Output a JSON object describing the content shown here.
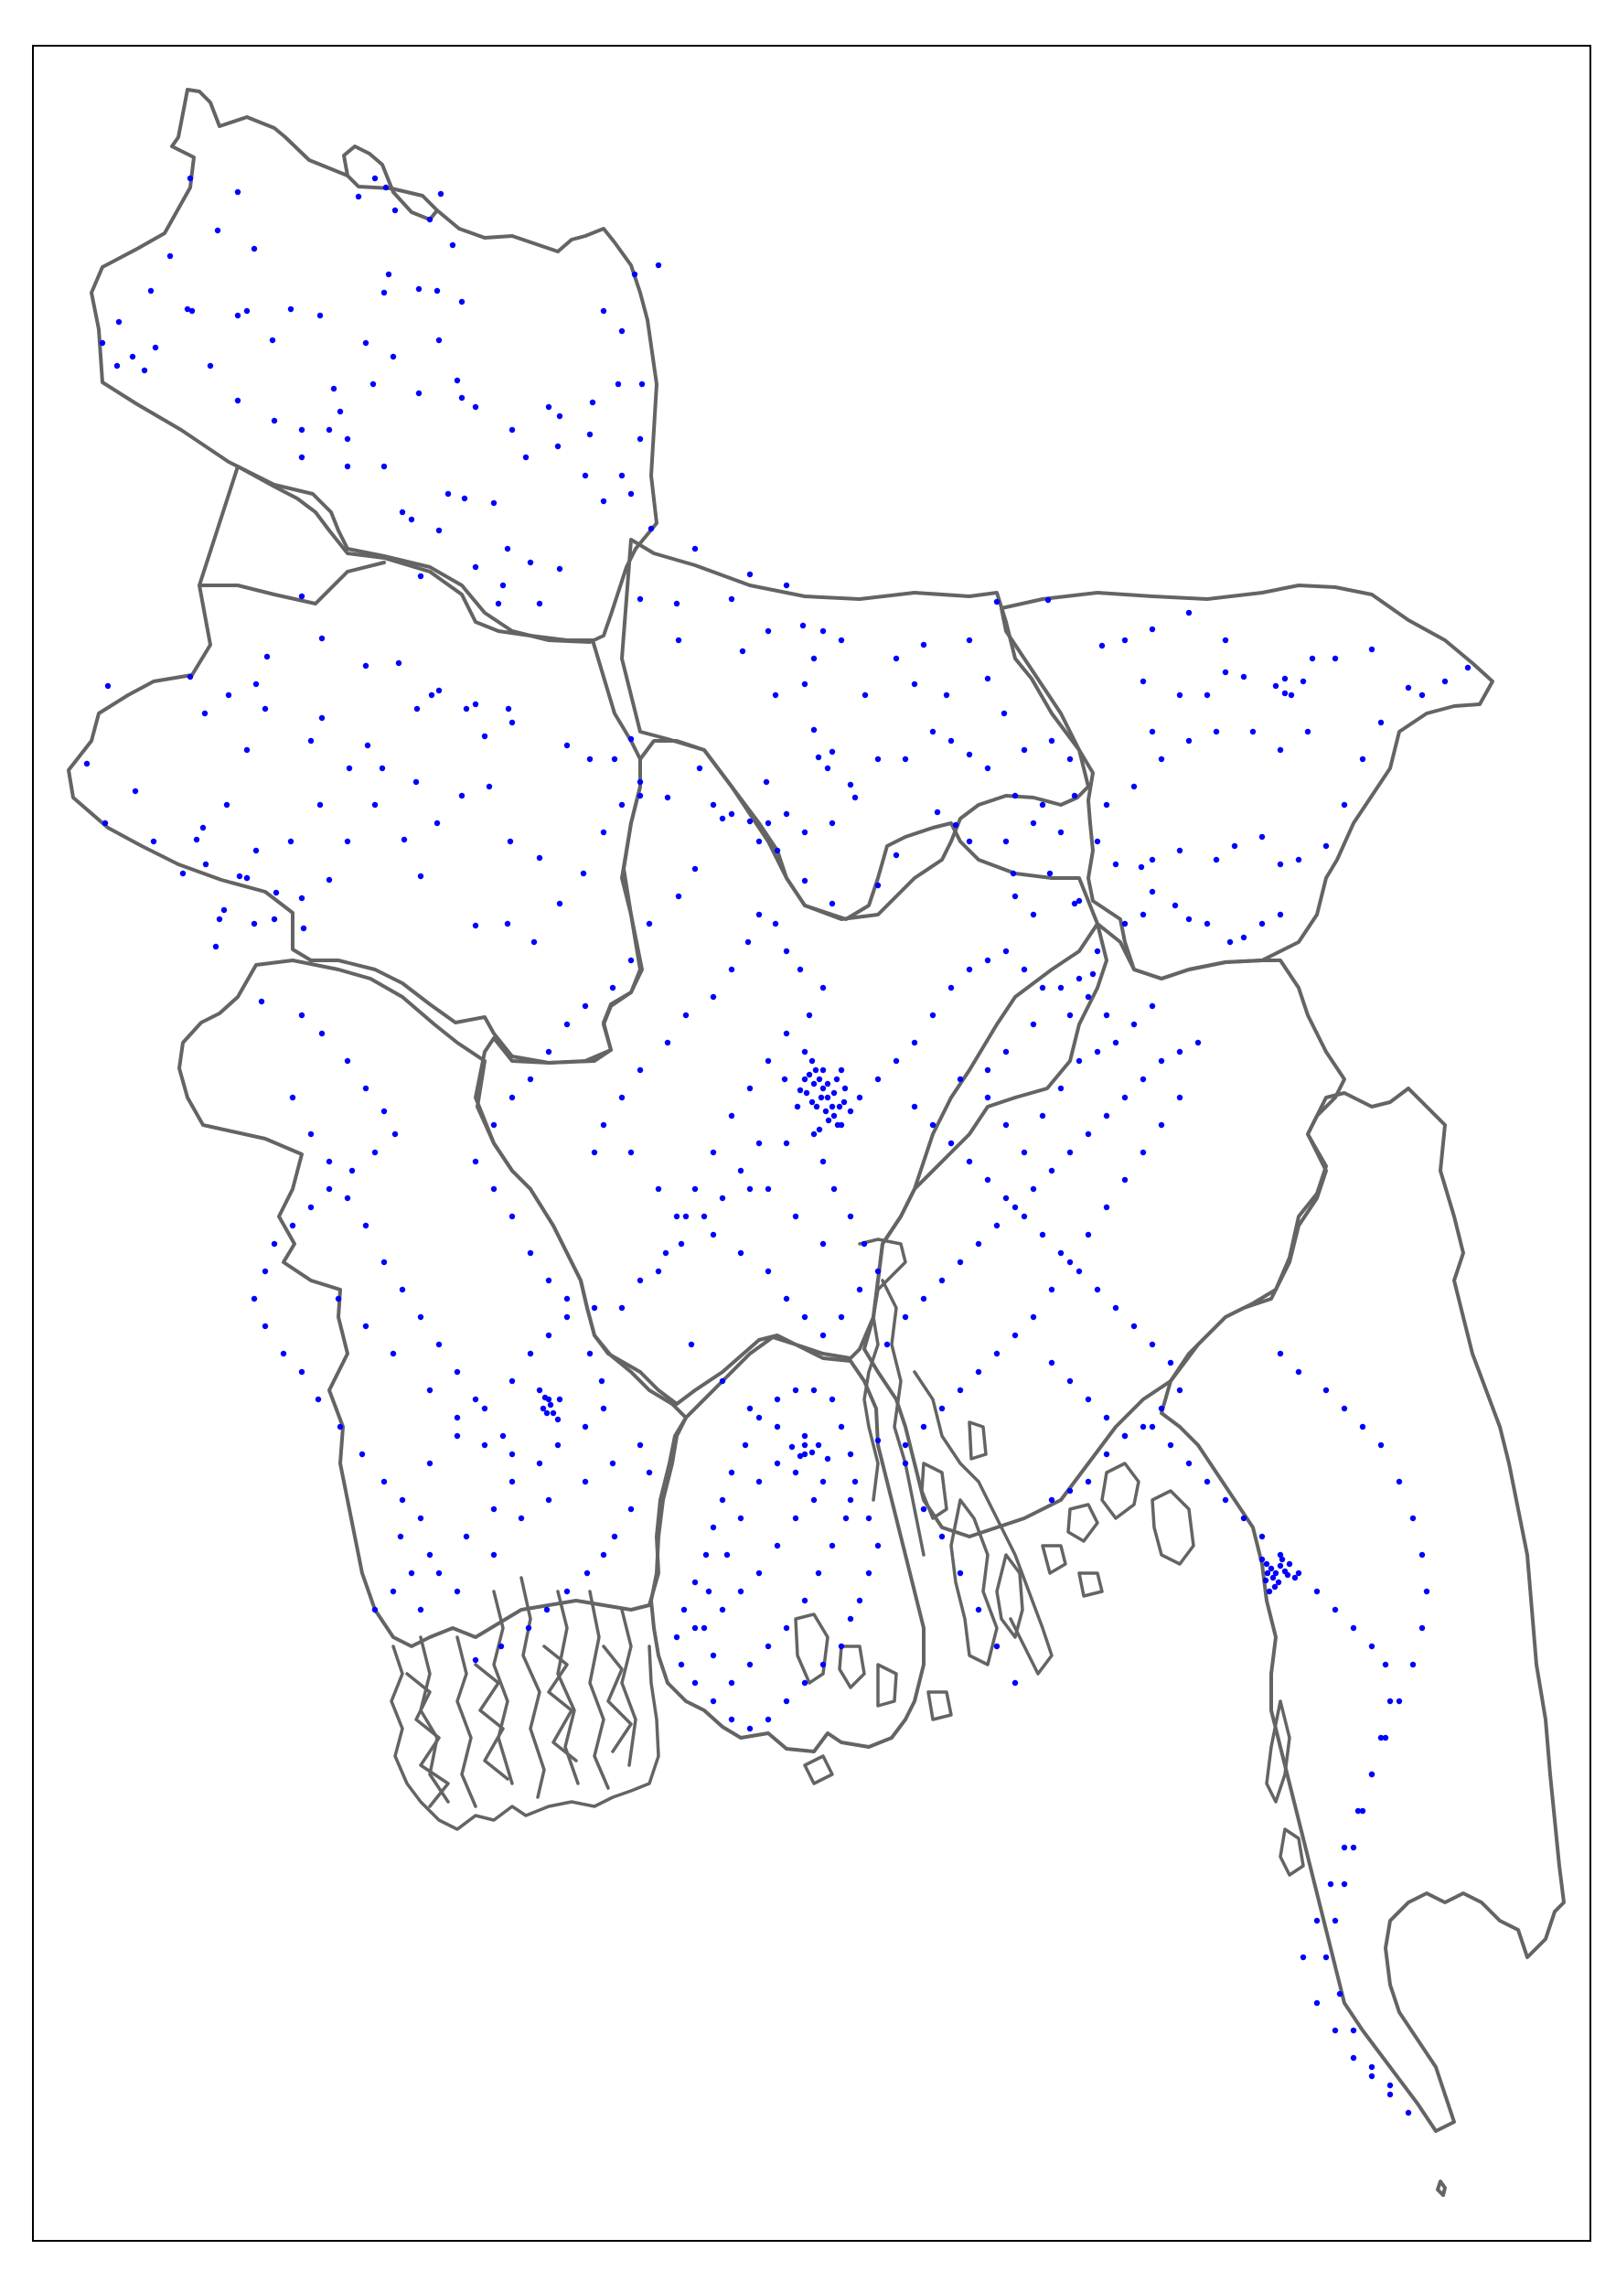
{
  "map": {
    "boundary_color": "#646464",
    "point_color": "#0000ff",
    "frame_color": "#000000",
    "background_color": "#ffffff",
    "marker": "dot",
    "legend": "none",
    "title": "",
    "axes_ticks": "none"
  }
}
